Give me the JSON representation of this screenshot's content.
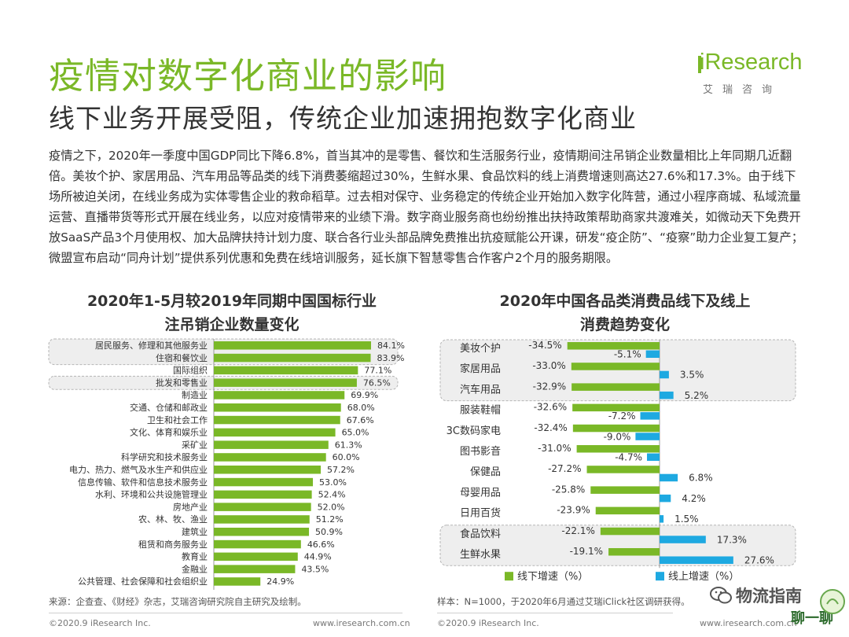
{
  "header": {
    "title": "疫情对数字化商业的影响",
    "subtitle": "线下业务开展受阻，传统企业加速拥抱数字化商业"
  },
  "logo": {
    "name": "iResearch",
    "sub": "艾瑞咨询"
  },
  "paragraph": "疫情之下，2020年一季度中国GDP同比下降6.8%，首当其冲的是零售、餐饮和生活服务行业，疫情期间注吊销企业数量相比上年同期几近翻倍。美妆个护、家居用品、汽车用品等品类的线下消费萎缩超过30%，生鲜水果、食品饮料的线上消费增速则高达27.6%和17.3%。由于线下场所被迫关闭，在线业务成为实体零售企业的救命稻草。过去相对保守、业务稳定的传统企业开始加入数字化阵营，通过小程序商城、私域流量运营、直播带货等形式开展在线业务，以应对疫情带来的业绩下滑。数字商业服务商也纷纷推出扶持政策帮助商家共渡难关，如微动天下免费开放SaaS产品3个月使用权、加大品牌扶持计划力度、联合各行业头部品牌免费推出抗疫赋能公开课，研发“疫企防”、“疫察”助力企业复工复产；微盟宣布启动“同舟计划”提供系列优惠和免费在线培训服务，延长旗下智慧零售合作客户2个月的服务期限。",
  "colors": {
    "accent": "#7ab827",
    "online": "#1ea9e1"
  },
  "left_chart_title": [
    "2020年1-5月较2019年同期中国国标行业",
    "注吊销企业数量变化"
  ],
  "right_chart_title": [
    "2020年中国各品类消费品线下及线上",
    "消费趋势变化"
  ],
  "sources": {
    "left": "来源：企查查、《财经》杂志，艾瑞咨询研究院自主研究及绘制。",
    "right": "样本：N=1000，于2020年6月通过艾瑞iClick社区调研获得。"
  },
  "footer": {
    "left_copyright": "©2020.9 iResearch Inc.",
    "left_url": "www.iresearch.com.cn",
    "right_copyright": "©2020.9 iResearch Inc.",
    "right_url": "www.iresearch.com.cn"
  },
  "watermark": {
    "text": "物流指南",
    "text2": "聊一聊"
  },
  "chart_data": [
    {
      "type": "bar",
      "orientation": "horizontal",
      "title": "2020年1-5月较2019年同期中国国标行业注吊销企业数量变化",
      "categories": [
        "居民服务、修理和其他服务业",
        "住宿和餐饮业",
        "国际组织",
        "批发和零售业",
        "制造业",
        "交通、仓储和邮政业",
        "卫生和社会工作",
        "文化、体育和娱乐业",
        "采矿业",
        "科学研究和技术服务业",
        "电力、热力、燃气及水生产和供应业",
        "信息传输、软件和信息技术服务业",
        "水利、环境和公共设施管理业",
        "房地产业",
        "农、林、牧、渔业",
        "建筑业",
        "租赁和商务服务业",
        "教育业",
        "金融业",
        "公共管理、社会保障和社会组织业"
      ],
      "values": [
        84.1,
        83.9,
        77.1,
        76.5,
        69.9,
        68.0,
        67.6,
        65.0,
        61.3,
        60.0,
        57.2,
        53.0,
        52.4,
        52.0,
        51.2,
        50.9,
        46.6,
        44.9,
        43.5,
        24.9
      ],
      "labels": [
        "84.1%",
        "83.9%",
        "77.1%",
        "76.5%",
        "69.9%",
        "68.0%",
        "67.6%",
        "65.0%",
        "61.3%",
        "60.0%",
        "57.2%",
        "53.0%",
        "52.4%",
        "52.0%",
        "51.2%",
        "50.9%",
        "46.6%",
        "44.9%",
        "43.5%",
        "24.9%"
      ],
      "highlighted_groups": [
        [
          "居民服务、修理和其他服务业",
          "住宿和餐饮业"
        ],
        [
          "批发和零售业"
        ]
      ],
      "xlim": [
        0,
        100
      ]
    },
    {
      "type": "bar",
      "orientation": "horizontal",
      "title": "2020年中国各品类消费品线下及线上消费趋势变化",
      "categories": [
        "美妆个护",
        "家居用品",
        "汽车用品",
        "服装鞋帽",
        "3C数码家电",
        "图书影音",
        "保健品",
        "母婴用品",
        "日用百货",
        "食品饮料",
        "生鲜水果"
      ],
      "series": [
        {
          "name": "线下增速（%）",
          "values": [
            -34.5,
            -33.0,
            -32.9,
            -32.6,
            -32.4,
            -31.0,
            -27.2,
            -25.8,
            -23.9,
            -22.1,
            -19.1
          ],
          "labels": [
            "-34.5%",
            "-33.0%",
            "-32.9%",
            "-32.6%",
            "-32.4%",
            "-31.0%",
            "-27.2%",
            "-25.8%",
            "-23.9%",
            "-22.1%",
            "-19.1%"
          ]
        },
        {
          "name": "线上增速（%）",
          "values": [
            -5.1,
            3.5,
            5.2,
            -7.2,
            -9.0,
            -4.7,
            6.8,
            4.2,
            1.5,
            17.3,
            27.6
          ],
          "labels": [
            "-5.1%",
            "3.5%",
            "5.2%",
            "-7.2%",
            "-9.0%",
            "-4.7%",
            "6.8%",
            "4.2%",
            "1.5%",
            "17.3%",
            "27.6%"
          ]
        }
      ],
      "highlighted_groups": [
        [
          "美妆个护",
          "家居用品",
          "汽车用品"
        ],
        [
          "食品饮料",
          "生鲜水果"
        ]
      ],
      "legend_position": "bottom"
    }
  ]
}
